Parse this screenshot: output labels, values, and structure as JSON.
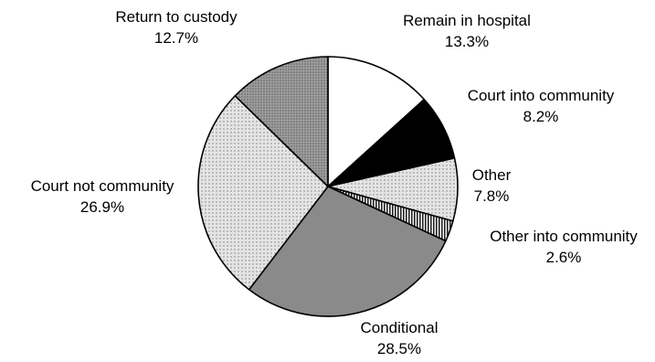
{
  "chart_data": {
    "type": "pie",
    "title": "",
    "start_angle_deg": 0,
    "direction": "clockwise",
    "slices": [
      {
        "label": "Remain in hospital",
        "value_text": "13.3%",
        "value": 13.3,
        "fill": "#ffffff",
        "pattern": "none"
      },
      {
        "label": "Court into community",
        "value_text": "8.2%",
        "value": 8.2,
        "fill": "#000000",
        "pattern": "none"
      },
      {
        "label": "Other",
        "value_text": "7.8%",
        "value": 7.8,
        "fill": "#d6d6d6",
        "pattern": "fine-dots"
      },
      {
        "label": "Other into community",
        "value_text": "2.6%",
        "value": 2.6,
        "fill": "#555555",
        "pattern": "vertical-stripes"
      },
      {
        "label": "Conditional",
        "value_text": "28.5%",
        "value": 28.5,
        "fill": "#8a8a8a",
        "pattern": "none"
      },
      {
        "label": "Court not community",
        "value_text": "26.9%",
        "value": 26.9,
        "fill": "#f0f0f0",
        "pattern": "fine-dots"
      },
      {
        "label": "Return to custody",
        "value_text": "12.7%",
        "value": 12.7,
        "fill": "#a8a8a8",
        "pattern": "dense-dots"
      }
    ]
  }
}
